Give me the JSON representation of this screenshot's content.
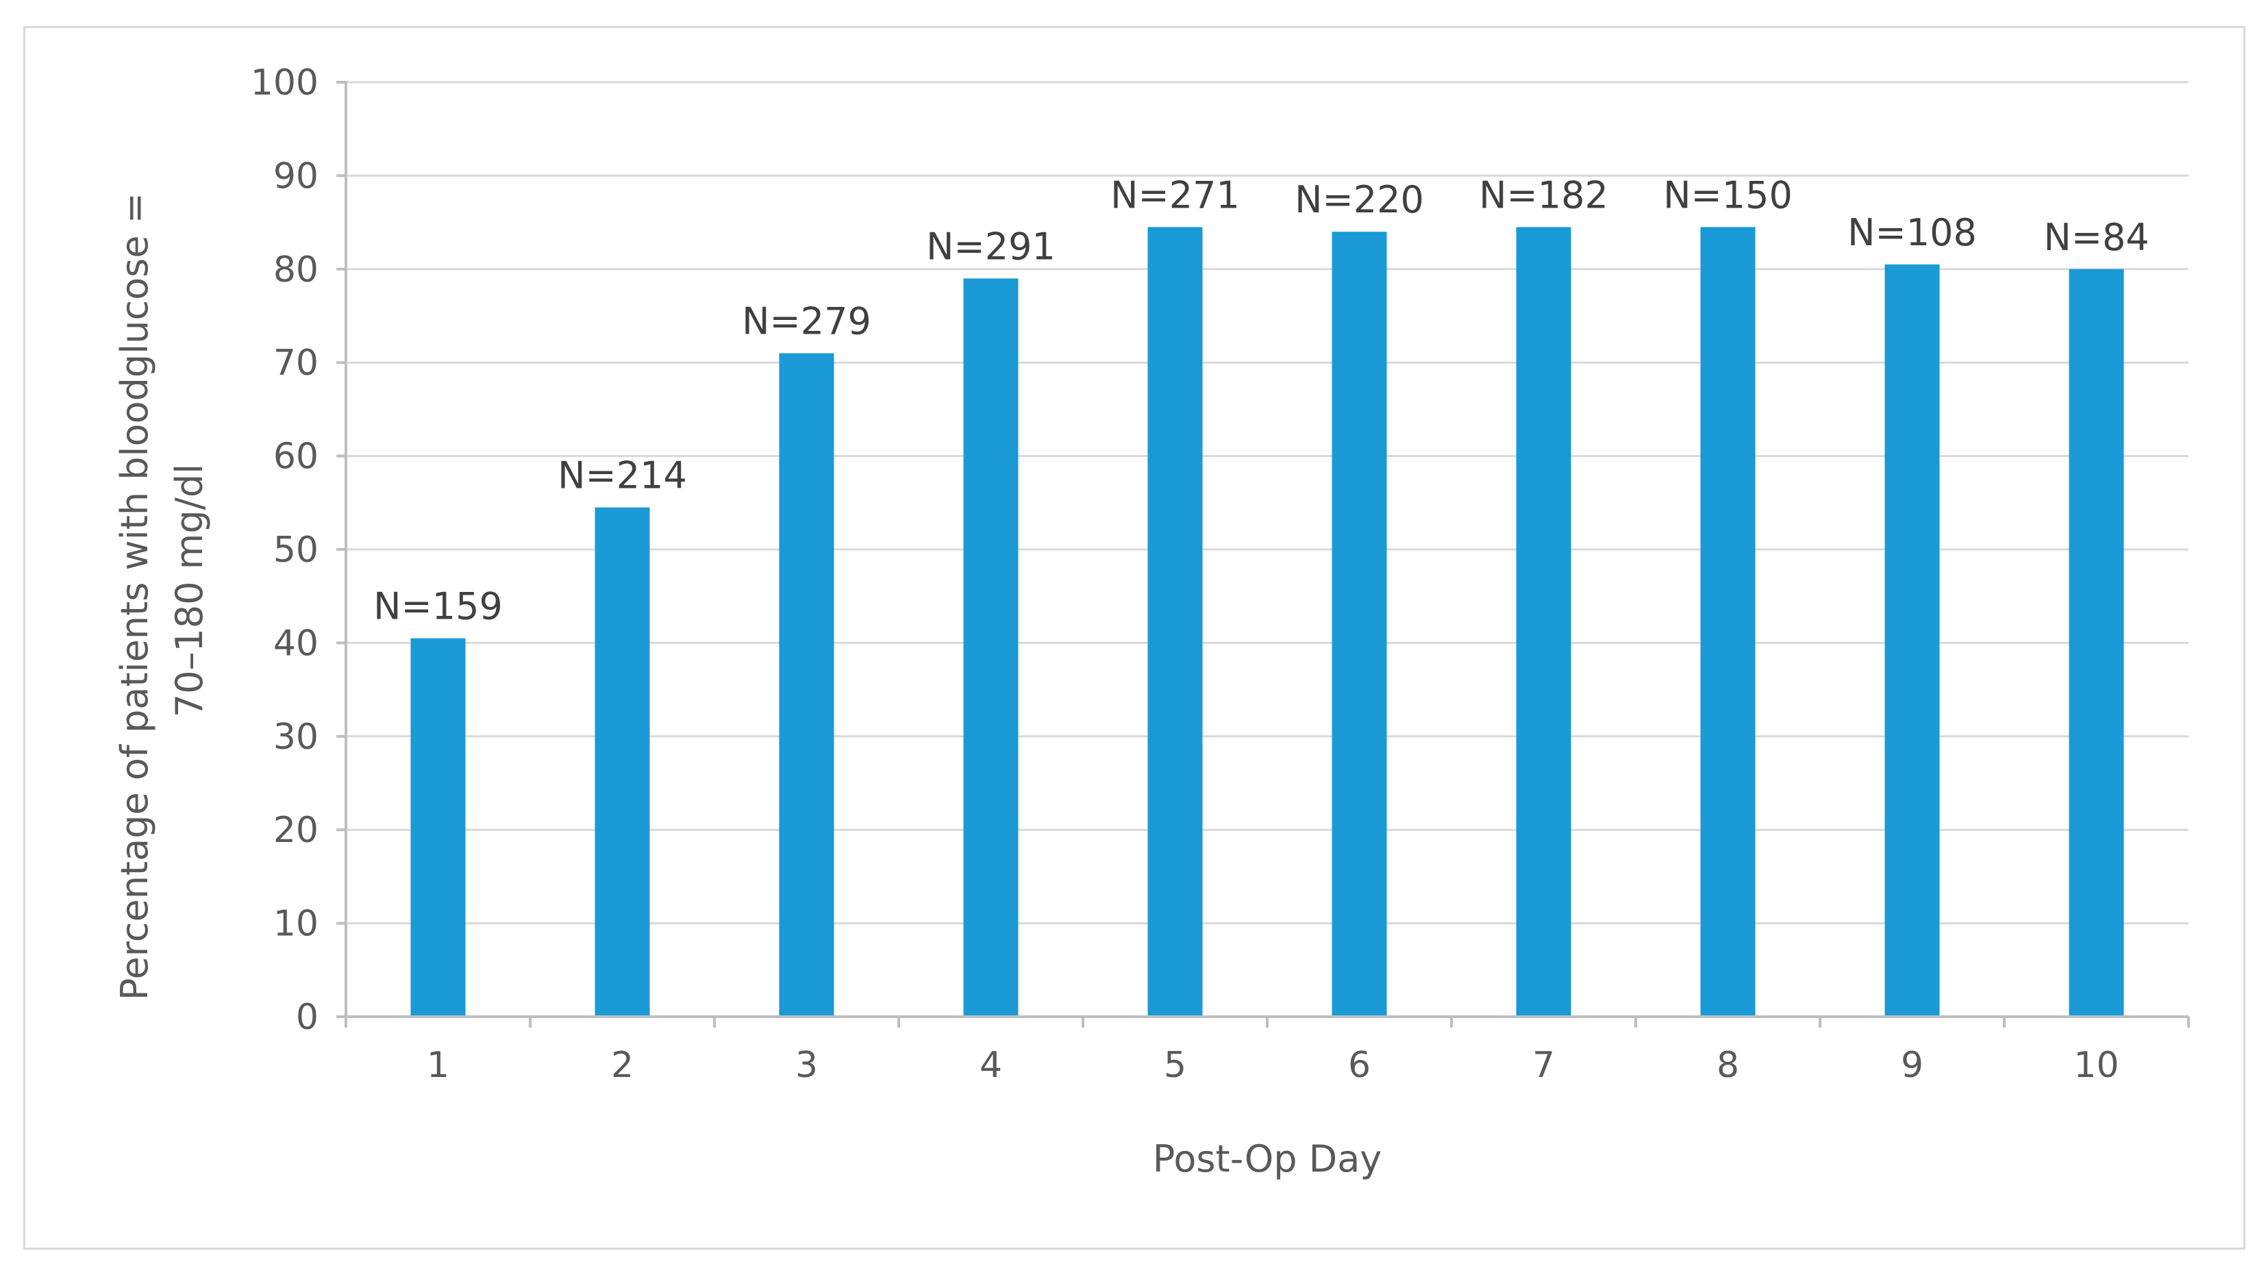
{
  "chart_data": {
    "type": "bar",
    "categories": [
      "1",
      "2",
      "3",
      "4",
      "5",
      "6",
      "7",
      "8",
      "9",
      "10"
    ],
    "values": [
      40.5,
      54.5,
      71,
      79,
      84.5,
      84,
      84.5,
      84.5,
      80.5,
      80
    ],
    "data_labels": [
      "N=159",
      "N=214",
      "N=279",
      "N=291",
      "N=271",
      "N=220",
      "N=182",
      "N=150",
      "N=108",
      "N=84"
    ],
    "xlabel": "Post-Op Day",
    "ylabel_lines": [
      "Percentage of patients with bloodglucose =",
      "70–180 mg/dl"
    ],
    "ylim": [
      0,
      100
    ],
    "yticks": [
      0,
      10,
      20,
      30,
      40,
      50,
      60,
      70,
      80,
      90,
      100
    ],
    "grid": true,
    "bar_color": "#1a9ad6"
  }
}
